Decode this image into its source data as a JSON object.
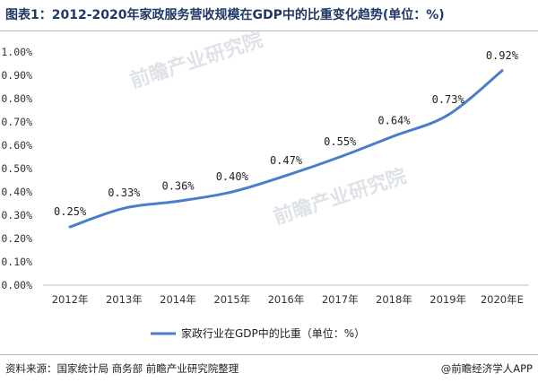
{
  "title": "图表1：2012-2020年家政服务营收规模在GDP中的比重变化趋势(单位：%)",
  "source": "资料来源：国家统计局 商务部 前瞻产业研究院整理",
  "brand": "@前瞻经济学人APP",
  "watermark": {
    "text": "前瞻产业研究院"
  },
  "colors": {
    "line": "#4a7ec9",
    "title": "#1f3864",
    "grid": "#d9d9d9",
    "axis": "#bfbfbf"
  },
  "chart_data": {
    "type": "line",
    "categories": [
      "2012年",
      "2013年",
      "2014年",
      "2015年",
      "2016年",
      "2017年",
      "2018年",
      "2019年",
      "2020年E"
    ],
    "series": [
      {
        "name": "家政行业在GDP中的比重（单位：%）",
        "values": [
          0.25,
          0.33,
          0.36,
          0.4,
          0.47,
          0.55,
          0.64,
          0.73,
          0.92
        ],
        "labels": [
          "0.25%",
          "0.33%",
          "0.36%",
          "0.40%",
          "0.47%",
          "0.55%",
          "0.64%",
          "0.73%",
          "0.92%"
        ]
      }
    ],
    "ylim": [
      0,
      1.0
    ],
    "yticks": [
      "0.00%",
      "0.10%",
      "0.20%",
      "0.30%",
      "0.40%",
      "0.50%",
      "0.60%",
      "0.70%",
      "0.80%",
      "0.90%",
      "1.00%"
    ],
    "legend": "bottom",
    "grid": false
  }
}
